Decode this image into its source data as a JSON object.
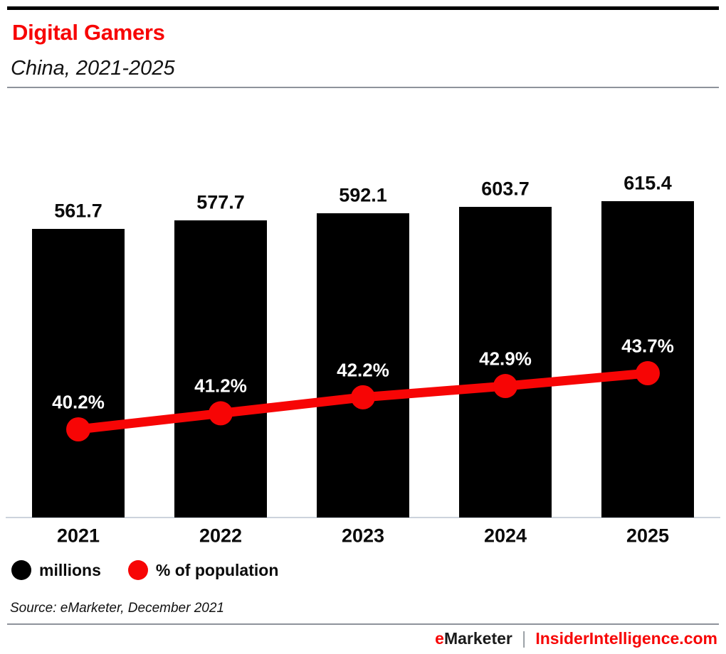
{
  "header": {
    "title": "Digital Gamers",
    "subtitle": "China, 2021-2025"
  },
  "chart_data": {
    "type": "bar",
    "title": "Digital Gamers",
    "subtitle": "China, 2021-2025",
    "categories": [
      "2021",
      "2022",
      "2023",
      "2024",
      "2025"
    ],
    "series": [
      {
        "name": "millions",
        "type": "bar",
        "color": "#000000",
        "values": [
          561.7,
          577.7,
          592.1,
          603.7,
          615.4
        ],
        "value_labels": [
          "561.7",
          "577.7",
          "592.1",
          "603.7",
          "615.4"
        ]
      },
      {
        "name": "% of population",
        "type": "line",
        "color": "#f70505",
        "values": [
          40.2,
          41.2,
          42.2,
          42.9,
          43.7
        ],
        "value_labels": [
          "40.2%",
          "41.2%",
          "42.2%",
          "42.9%",
          "43.7%"
        ]
      }
    ],
    "xlabel": "",
    "ylabel": "",
    "bar_ylim": [
      0,
      615.4
    ],
    "line_ylim": [
      40.2,
      43.7
    ],
    "grid": false,
    "legend_position": "bottom-left",
    "value_labels_shown": true
  },
  "legend": {
    "items": [
      {
        "label": "millions",
        "color": "#000000"
      },
      {
        "label": "% of population",
        "color": "#f70505"
      }
    ]
  },
  "source_note": "Source: eMarketer, December 2021",
  "brand_footer": {
    "brand_prefix": "e",
    "brand_name": "Marketer",
    "separator": "|",
    "site": "InsiderIntelligence.com"
  },
  "colors": {
    "accent_red": "#f70505",
    "bar_black": "#000000",
    "rule_gray": "#8e939b",
    "axis_gray": "#ccd3dc"
  }
}
